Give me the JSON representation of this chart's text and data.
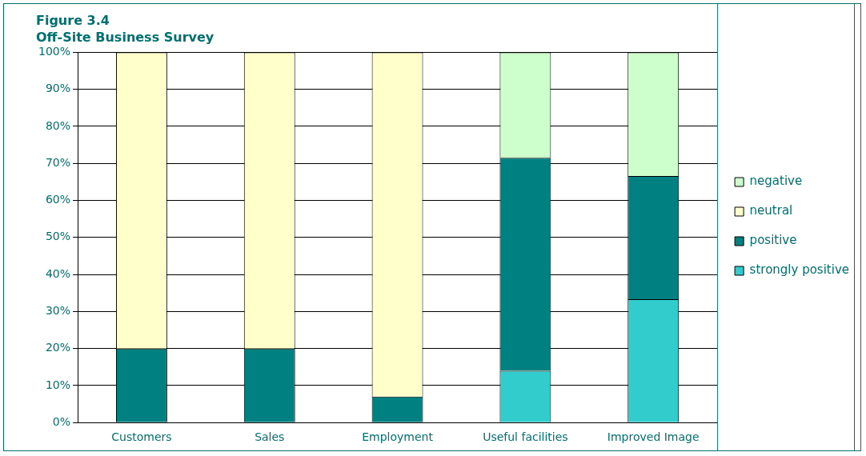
{
  "chart_data": {
    "type": "bar",
    "title": "Figure 3.4",
    "subtitle": "Off-Site Business Survey",
    "categories": [
      "Customers",
      "Sales",
      "Employment",
      "Useful facilities",
      "Improved Image"
    ],
    "stacked": true,
    "series": [
      {
        "name": "strongly positive",
        "color": "#33cccc",
        "values": [
          0,
          0,
          0,
          14,
          33.3
        ]
      },
      {
        "name": "positive",
        "color": "#008080",
        "values": [
          20,
          20,
          7,
          57.5,
          33.3
        ]
      },
      {
        "name": "neutral",
        "color": "#ffffcc",
        "values": [
          80,
          80,
          93,
          0,
          0
        ]
      },
      {
        "name": "negative",
        "color": "#ccffcc",
        "values": [
          0,
          0,
          0,
          28.5,
          33.4
        ]
      }
    ],
    "ylim": [
      0,
      100
    ],
    "yticks": [
      {
        "value": 0,
        "label": "0%"
      },
      {
        "value": 10,
        "label": "10%"
      },
      {
        "value": 20,
        "label": "20%"
      },
      {
        "value": 30,
        "label": "30%"
      },
      {
        "value": 40,
        "label": "40%"
      },
      {
        "value": 50,
        "label": "50%"
      },
      {
        "value": 60,
        "label": "60%"
      },
      {
        "value": 70,
        "label": "70%"
      },
      {
        "value": 80,
        "label": "80%"
      },
      {
        "value": 90,
        "label": "90%"
      },
      {
        "value": 100,
        "label": "100%"
      }
    ],
    "grid": "y",
    "legend": "right"
  }
}
